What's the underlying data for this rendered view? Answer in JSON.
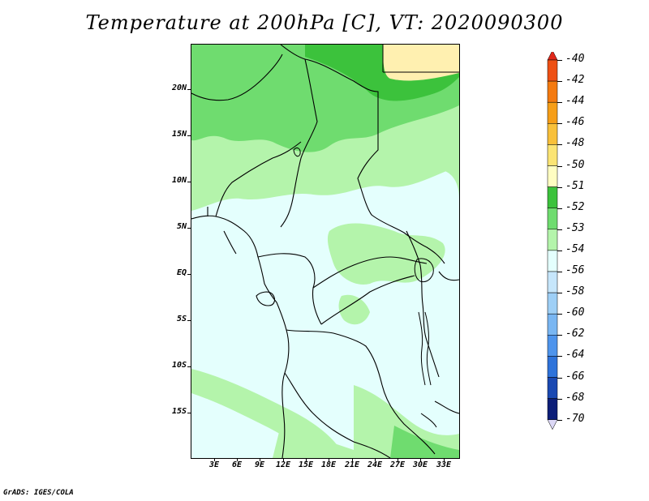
{
  "title": "Temperature at 200hPa [C], VT: 2020090300",
  "credit": "GrADS: IGES/COLA",
  "lat_labels": [
    "20N",
    "15N",
    "10N",
    "5N",
    "EQ",
    "5S",
    "10S",
    "15S"
  ],
  "lon_labels": [
    "3E",
    "6E",
    "9E",
    "12E",
    "15E",
    "18E",
    "21E",
    "24E",
    "27E",
    "30E",
    "33E"
  ],
  "colorbar": {
    "labels": [
      "-40",
      "-42",
      "-44",
      "-46",
      "-48",
      "-50",
      "-51",
      "-52",
      "-53",
      "-54",
      "-56",
      "-58",
      "-60",
      "-62",
      "-64",
      "-66",
      "-68",
      "-70"
    ],
    "colors": [
      "#e0281a",
      "#ee5014",
      "#f47a10",
      "#f69e18",
      "#f8c03a",
      "#fbe474",
      "#fffdc2",
      "#3cc23c",
      "#6fdc6f",
      "#b4f4ab",
      "#e4fffd",
      "#c6e6fb",
      "#9ecff6",
      "#79b6f2",
      "#4e94ec",
      "#2e73da",
      "#1a49b2",
      "#0c1e78",
      "#dcd8f6"
    ]
  },
  "legend_colors": {
    "c51": "#fff0b0",
    "c52": "#3cc23c",
    "c53": "#6fdc6f",
    "c54": "#b4f4ab",
    "c56": "#e4fffd"
  }
}
